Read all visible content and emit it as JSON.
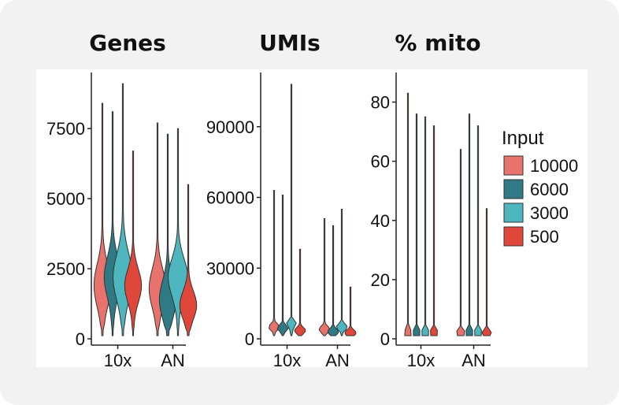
{
  "colors": {
    "accent_10000": "#e8736c",
    "accent_6000": "#2f7a84",
    "accent_3000": "#4db6bf",
    "accent_500": "#e0473b"
  },
  "chart_data": [
    {
      "type": "violin",
      "title": "Genes",
      "xlabel": "",
      "ylabel": "",
      "categories": [
        "10x",
        "AN"
      ],
      "ylim": [
        0,
        9500
      ],
      "yticks": [
        0,
        2500,
        5000,
        7500
      ],
      "ytick_labels": [
        "0",
        "2500",
        "5000",
        "7500"
      ],
      "series": [
        {
          "name": "10000",
          "values": [
            8400,
            7700
          ],
          "median": [
            1900,
            1800
          ]
        },
        {
          "name": "6000",
          "values": [
            8100,
            7300
          ],
          "median": [
            2200,
            1400
          ]
        },
        {
          "name": "3000",
          "values": [
            9100,
            7500
          ],
          "median": [
            2200,
            2200
          ]
        },
        {
          "name": "500",
          "values": [
            6700,
            5500
          ],
          "median": [
            1900,
            1200
          ]
        }
      ]
    },
    {
      "type": "violin",
      "title": "UMIs",
      "xlabel": "",
      "ylabel": "",
      "categories": [
        "10x",
        "AN"
      ],
      "ylim": [
        0,
        113000
      ],
      "yticks": [
        0,
        30000,
        60000,
        90000
      ],
      "ytick_labels": [
        "0",
        "30000",
        "60000",
        "90000"
      ],
      "series": [
        {
          "name": "10000",
          "values": [
            63000,
            51000
          ],
          "median": [
            5000,
            4000
          ]
        },
        {
          "name": "6000",
          "values": [
            61000,
            48000
          ],
          "median": [
            4500,
            3000
          ]
        },
        {
          "name": "3000",
          "values": [
            108000,
            55000
          ],
          "median": [
            6000,
            5000
          ]
        },
        {
          "name": "500",
          "values": [
            38000,
            22000
          ],
          "median": [
            3500,
            2500
          ]
        }
      ]
    },
    {
      "type": "violin",
      "title": "% mito",
      "xlabel": "",
      "ylabel": "",
      "categories": [
        "10x",
        "AN"
      ],
      "ylim": [
        0,
        90
      ],
      "yticks": [
        0,
        20,
        40,
        60,
        80
      ],
      "ytick_labels": [
        "0",
        "20",
        "40",
        "60",
        "80"
      ],
      "series": [
        {
          "name": "10000",
          "values": [
            83,
            64
          ],
          "median": [
            2,
            2
          ]
        },
        {
          "name": "6000",
          "values": [
            76,
            76
          ],
          "median": [
            2,
            2
          ]
        },
        {
          "name": "3000",
          "values": [
            75,
            72
          ],
          "median": [
            2,
            2
          ]
        },
        {
          "name": "500",
          "values": [
            72,
            44
          ],
          "median": [
            2,
            2
          ]
        }
      ]
    }
  ],
  "legend": {
    "title": "Input",
    "items": [
      "10000",
      "6000",
      "3000",
      "500"
    ]
  }
}
